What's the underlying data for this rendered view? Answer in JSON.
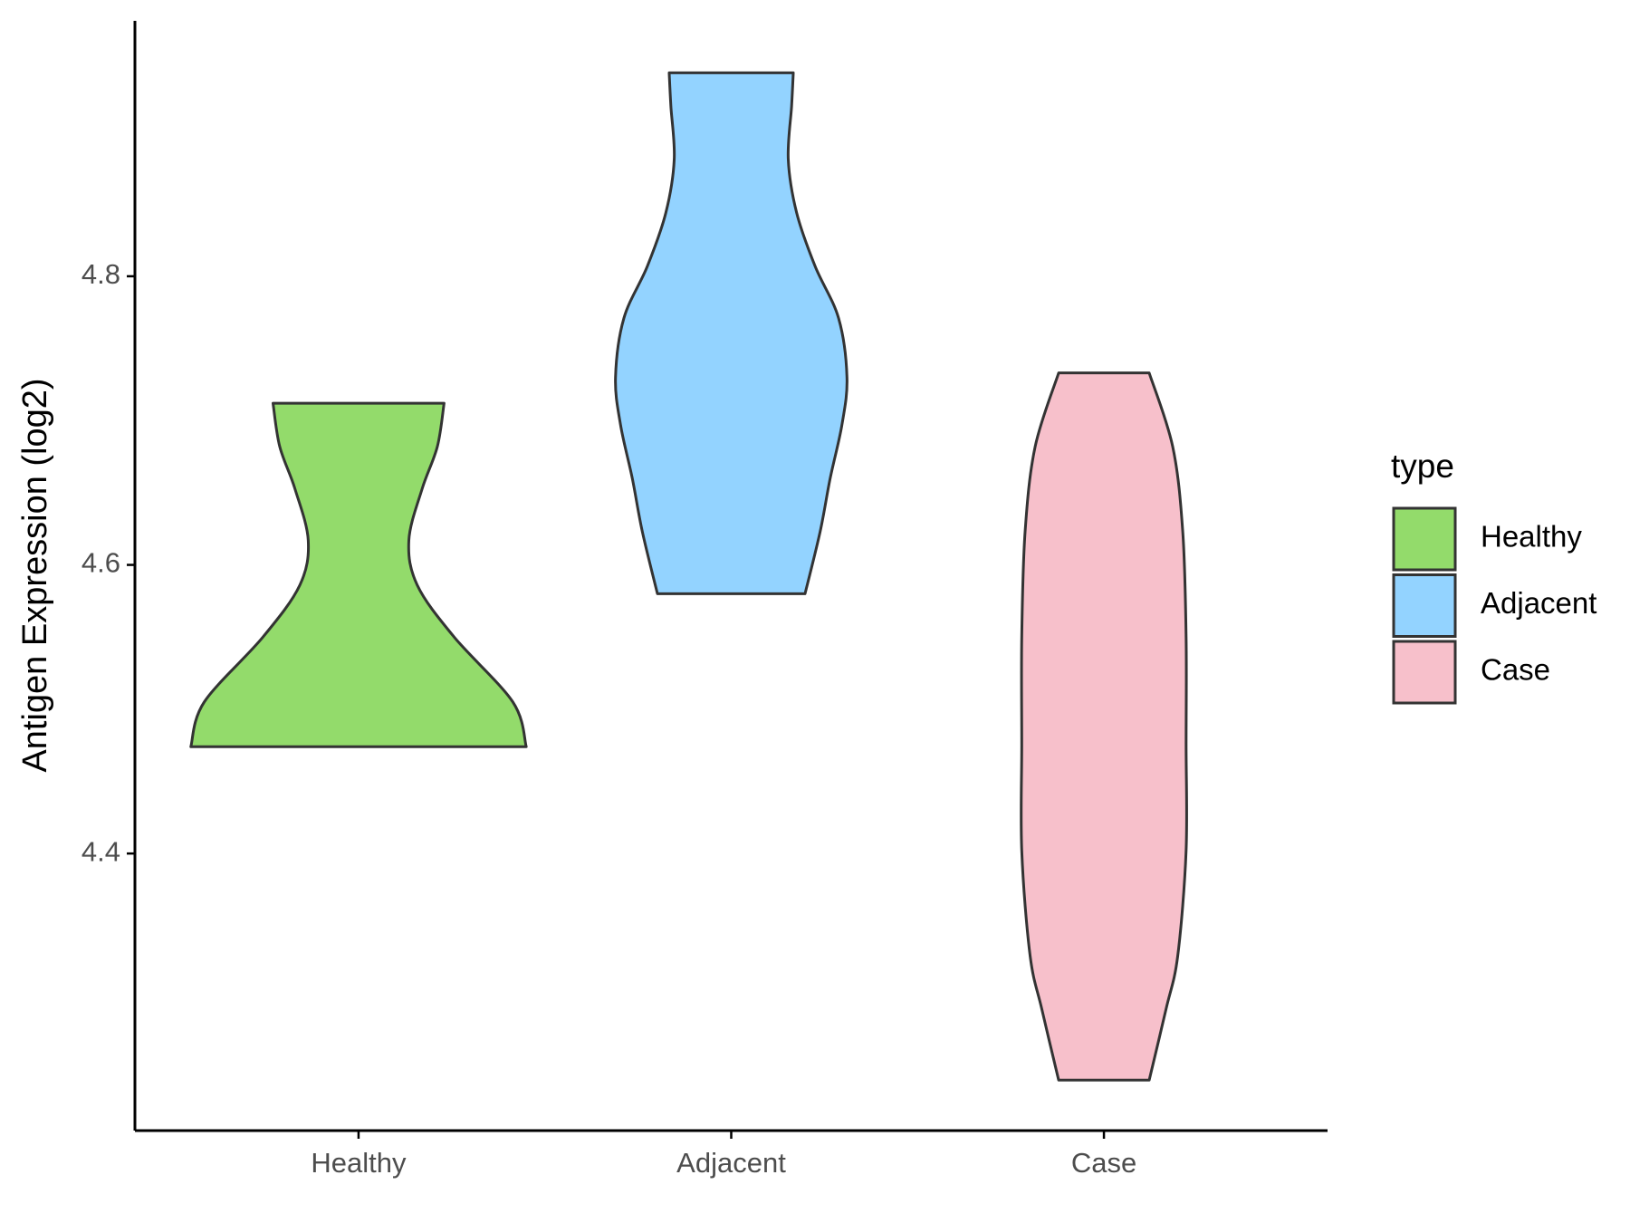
{
  "chart_data": {
    "type": "violin",
    "y_label": "Antigen Expression (log2)",
    "categories": [
      "Healthy",
      "Adjacent",
      "Case"
    ],
    "legend_title": "type",
    "legend_position": "right",
    "ylim": [
      4.208,
      4.977
    ],
    "yticks": [
      4.4,
      4.6,
      4.8
    ],
    "series": [
      {
        "name": "Healthy",
        "color": "#93db6b",
        "y": [
          4.474,
          4.505,
          4.55,
          4.586,
          4.617,
          4.653,
          4.682,
          4.712
        ],
        "density": [
          1.0,
          0.92,
          0.57,
          0.35,
          0.3,
          0.38,
          0.47,
          0.51
        ]
      },
      {
        "name": "Adjacent",
        "color": "#93d3ff",
        "y": [
          4.58,
          4.623,
          4.66,
          4.697,
          4.73,
          4.771,
          4.807,
          4.844,
          4.881,
          4.918,
          4.941
        ],
        "density": [
          0.44,
          0.53,
          0.59,
          0.66,
          0.69,
          0.64,
          0.5,
          0.39,
          0.34,
          0.36,
          0.37
        ]
      },
      {
        "name": "Case",
        "color": "#f7c0cb",
        "y": [
          4.243,
          4.292,
          4.329,
          4.402,
          4.476,
          4.55,
          4.623,
          4.682,
          4.733
        ],
        "density": [
          0.27,
          0.37,
          0.44,
          0.49,
          0.49,
          0.49,
          0.47,
          0.41,
          0.27
        ]
      }
    ]
  }
}
